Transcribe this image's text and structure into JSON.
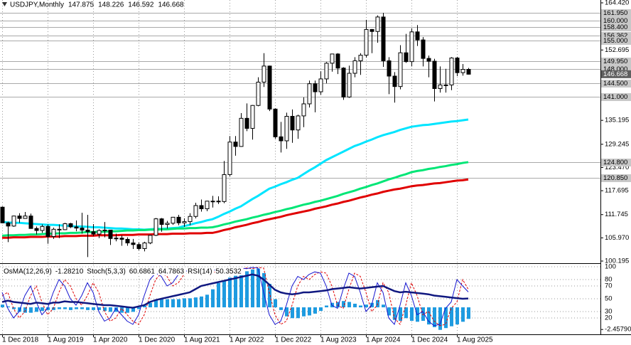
{
  "chart_data": [
    {
      "type": "candlestick",
      "symbol": "USDJPY,Monthly",
      "categories": [
        "1 Dec 2018",
        null,
        null,
        null,
        null,
        null,
        null,
        null,
        "1 Aug 2019",
        null,
        null,
        null,
        null,
        null,
        null,
        null,
        "1 Apr 2020",
        null,
        null,
        null,
        null,
        null,
        null,
        null,
        "1 Dec 2020",
        null,
        null,
        null,
        null,
        null,
        null,
        null,
        "1 Aug 2021",
        null,
        null,
        null,
        null,
        null,
        null,
        null,
        "1 Apr 2022",
        null,
        null,
        null,
        null,
        null,
        null,
        null,
        "1 Dec 2022",
        null,
        null,
        null,
        null,
        null,
        null,
        null,
        "1 Aug 2023",
        null,
        null,
        null,
        null,
        null,
        null,
        null,
        "1 Apr 2024",
        null,
        null,
        null,
        null,
        null,
        null,
        null,
        "1 Dec 2024",
        null,
        null,
        null,
        null,
        null,
        null,
        null,
        "1 Aug 2025",
        null,
        null
      ],
      "open": [
        113.6,
        109.7,
        108.9,
        111.4,
        110.8,
        111.4,
        108.3,
        107.8,
        108.8,
        106.3,
        108.1,
        108.0,
        109.5,
        108.7,
        108.4,
        107.9,
        107.5,
        106.9,
        107.8,
        107.9,
        105.8,
        105.9,
        105.6,
        104.7,
        104.3,
        103.3,
        104.7,
        106.6,
        110.7,
        109.3,
        109.6,
        111.1,
        109.7,
        110.0,
        111.3,
        114.0,
        113.2,
        115.1,
        115.1,
        115.0,
        121.7,
        129.8,
        128.7,
        135.7,
        133.2,
        138.9,
        144.7,
        148.7,
        138.0,
        131.1,
        130.1,
        136.2,
        132.8,
        136.3,
        139.3,
        144.3,
        142.3,
        145.5,
        149.4,
        151.7,
        148.2,
        141.0,
        146.9,
        150.0,
        151.4,
        157.8,
        157.3,
        160.9,
        150.0,
        146.2,
        143.6,
        152.0,
        149.8,
        157.2,
        155.2,
        150.6,
        149.9,
        143.1,
        144.0,
        144.0,
        150.7,
        147.05,
        147.875
      ],
      "high": [
        113.8,
        110.0,
        111.5,
        112.1,
        112.4,
        112.0,
        108.8,
        109.3,
        109.3,
        108.5,
        109.3,
        109.7,
        109.7,
        110.3,
        112.2,
        111.7,
        109.4,
        108.1,
        109.9,
        107.9,
        107.0,
        106.6,
        106.1,
        105.7,
        104.8,
        105.0,
        106.7,
        110.9,
        110.9,
        110.2,
        111.1,
        111.7,
        110.8,
        112.1,
        114.7,
        115.5,
        115.2,
        116.4,
        116.3,
        125.1,
        131.3,
        131.3,
        137.0,
        139.4,
        139.0,
        145.9,
        151.9,
        148.8,
        138.2,
        134.8,
        137.1,
        137.9,
        136.6,
        140.9,
        145.1,
        145.1,
        147.4,
        149.7,
        151.7,
        151.9,
        148.4,
        148.8,
        150.9,
        151.9,
        160.2,
        157.9,
        161.3,
        161.95,
        150.9,
        147.2,
        153.9,
        156.7,
        158.1,
        158.9,
        155.9,
        151.3,
        150.5,
        148.6,
        148.0,
        150.9,
        151.0,
        149.2,
        148.226
      ],
      "low": [
        109.6,
        104.9,
        108.7,
        109.7,
        110.8,
        108.3,
        106.8,
        107.2,
        104.5,
        105.7,
        105.9,
        107.9,
        108.4,
        107.6,
        107.0,
        101.2,
        106.4,
        105.9,
        106.1,
        104.2,
        105.1,
        104.0,
        104.0,
        103.2,
        102.9,
        102.6,
        104.4,
        106.4,
        107.5,
        108.3,
        109.2,
        109.1,
        108.7,
        109.1,
        110.8,
        112.5,
        112.6,
        113.5,
        114.4,
        114.6,
        121.3,
        126.4,
        128.6,
        132.5,
        130.4,
        138.7,
        143.5,
        137.5,
        130.6,
        127.2,
        128.1,
        129.6,
        130.6,
        133.5,
        138.4,
        137.2,
        141.5,
        144.4,
        147.3,
        146.7,
        140.3,
        140.8,
        145.9,
        146.5,
        150.8,
        151.9,
        154.5,
        148.5,
        141.7,
        139.6,
        142.9,
        149.5,
        148.6,
        153.7,
        148.6,
        145.9,
        139.9,
        142.1,
        142.1,
        142.7,
        146.2,
        146.3,
        146.592
      ],
      "close": [
        109.7,
        108.9,
        111.4,
        110.8,
        111.4,
        108.3,
        107.8,
        108.8,
        106.3,
        108.1,
        108.0,
        109.5,
        108.7,
        108.4,
        107.9,
        107.5,
        106.9,
        107.8,
        107.9,
        105.8,
        105.9,
        105.6,
        104.7,
        104.3,
        103.3,
        104.7,
        106.6,
        110.7,
        109.3,
        109.6,
        111.1,
        109.7,
        110.0,
        111.3,
        114.0,
        113.2,
        115.1,
        115.1,
        115.0,
        121.7,
        129.8,
        128.7,
        135.7,
        133.2,
        138.9,
        144.7,
        148.7,
        138.0,
        131.1,
        130.1,
        136.2,
        132.8,
        136.3,
        139.3,
        144.3,
        142.3,
        145.5,
        149.4,
        151.7,
        148.2,
        141.0,
        146.9,
        150.0,
        151.4,
        157.8,
        157.3,
        160.9,
        150.0,
        146.2,
        143.6,
        152.0,
        149.8,
        157.2,
        155.2,
        150.6,
        149.9,
        143.1,
        144.0,
        144.0,
        150.7,
        147.05,
        147.875,
        146.668
      ],
      "series": [
        {
          "color": "#00e5ff",
          "values": [
            109.9,
            109.8,
            109.7,
            109.7,
            109.6,
            109.5,
            109.4,
            109.3,
            109.2,
            109.2,
            109.1,
            109.0,
            108.9,
            108.8,
            108.8,
            108.7,
            108.6,
            108.6,
            108.5,
            108.4,
            108.3,
            108.3,
            108.2,
            108.1,
            108.1,
            108.0,
            108.1,
            108.2,
            108.2,
            108.3,
            108.4,
            108.5,
            108.9,
            109.2,
            109.6,
            109.9,
            110.3,
            110.6,
            111.2,
            111.9,
            112.5,
            113.2,
            113.8,
            114.7,
            115.6,
            116.4,
            117.3,
            118.2,
            118.7,
            119.3,
            119.8,
            120.4,
            120.9,
            121.8,
            122.7,
            123.5,
            124.4,
            125.3,
            126.0,
            126.7,
            127.4,
            128.1,
            128.8,
            129.3,
            129.9,
            130.4,
            131.0,
            131.5,
            131.9,
            132.3,
            132.8,
            133.2,
            133.6,
            133.8,
            134.0,
            134.1,
            134.3,
            134.5,
            134.7,
            134.9,
            135.0,
            135.2,
            135.4
          ]
        },
        {
          "color": "#00e676",
          "values": [
            106.5,
            106.6,
            106.6,
            106.7,
            106.7,
            106.8,
            106.8,
            106.9,
            107.0,
            107.0,
            107.1,
            107.1,
            107.2,
            107.2,
            107.3,
            107.4,
            107.4,
            107.5,
            107.5,
            107.6,
            107.6,
            107.7,
            107.8,
            107.8,
            107.9,
            107.9,
            108.0,
            108.0,
            108.1,
            108.1,
            108.2,
            108.3,
            108.3,
            108.4,
            108.4,
            108.5,
            108.5,
            108.6,
            108.9,
            109.3,
            109.6,
            110.0,
            110.3,
            110.6,
            111.0,
            111.3,
            111.7,
            112.0,
            112.4,
            112.7,
            113.1,
            113.4,
            113.8,
            114.2,
            114.5,
            114.9,
            115.2,
            115.6,
            116.0,
            116.4,
            116.9,
            117.3,
            117.7,
            118.2,
            118.6,
            119.1,
            119.5,
            120.0,
            120.5,
            120.9,
            121.4,
            121.8,
            122.3,
            122.6,
            122.8,
            123.1,
            123.3,
            123.6,
            123.8,
            124.1,
            124.3,
            124.6,
            124.8
          ]
        },
        {
          "color": "#e00000",
          "values": [
            106.0,
            106.0,
            106.1,
            106.1,
            106.1,
            106.2,
            106.2,
            106.2,
            106.3,
            106.3,
            106.3,
            106.4,
            106.4,
            106.4,
            106.5,
            106.5,
            106.5,
            106.6,
            106.6,
            106.6,
            106.6,
            106.7,
            106.7,
            106.7,
            106.8,
            106.8,
            106.8,
            106.9,
            106.9,
            106.9,
            107.0,
            107.0,
            107.0,
            107.1,
            107.1,
            107.1,
            107.2,
            107.2,
            107.5,
            107.9,
            108.2,
            108.6,
            108.9,
            109.2,
            109.6,
            109.9,
            110.3,
            110.6,
            110.9,
            111.2,
            111.6,
            111.9,
            112.2,
            112.5,
            112.8,
            113.2,
            113.5,
            113.8,
            114.2,
            114.5,
            114.9,
            115.2,
            115.6,
            116.0,
            116.3,
            116.7,
            117.0,
            117.4,
            117.7,
            118.0,
            118.2,
            118.5,
            118.8,
            119.0,
            119.1,
            119.3,
            119.5,
            119.6,
            119.8,
            120.0,
            120.2,
            120.3,
            120.5
          ]
        }
      ],
      "ylim": [
        100.195,
        164.42
      ],
      "yticks": [
        {
          "value": 164.42,
          "label": "164.420"
        },
        152.695,
        135.195,
        129.245,
        {
          "value": 123.47,
          "label": "123.470"
        },
        117.695,
        111.745,
        {
          "value": 105.97,
          "label": "105.970"
        },
        100.195
      ],
      "levels": [
        {
          "value": 161.95,
          "label": "161.950"
        },
        {
          "value": 160,
          "label": "160.000"
        },
        {
          "value": 158.4,
          "label": "158.400"
        },
        156.362,
        {
          "value": 155,
          "label": "155.000"
        },
        {
          "value": 149.95,
          "label": "149.950"
        },
        {
          "value": 148,
          "label": "148.000"
        },
        {
          "value": 144.5,
          "label": "144.500"
        },
        {
          "value": 141,
          "label": "141.000"
        },
        {
          "value": 124.8,
          "label": "124.800"
        },
        {
          "value": 120.85,
          "label": "120.850"
        }
      ],
      "level_color": "#a9a9a9",
      "grid": true
    },
    {
      "type": "oscillator",
      "osma": {
        "name": "OsMA(12,26,9)",
        "last_label": "-1.28210",
        "color": "#1e9be0",
        "axis": "y2",
        "values": [
          0.3,
          0.1,
          -0.2,
          -0.5,
          -0.6,
          -0.6,
          -0.5,
          -0.4,
          -0.3,
          -0.3,
          -0.2,
          -0.2,
          -0.3,
          -0.2,
          -0.2,
          -0.3,
          -0.3,
          -0.3,
          -0.4,
          -0.5,
          -0.5,
          -0.6,
          -0.6,
          -0.5,
          -0.2,
          0.2,
          0.5,
          0.8,
          0.9,
          0.9,
          0.9,
          0.9,
          1.0,
          1.0,
          1.1,
          1.2,
          1.4,
          2.0,
          2.7,
          3.0,
          3.3,
          3.5,
          3.8,
          4.0,
          4.2,
          4.3,
          3.8,
          2.6,
          0.9,
          -0.3,
          -1.0,
          -1.2,
          -1.2,
          -1.0,
          -0.9,
          -0.7,
          -0.4,
          0.2,
          0.5,
          0.6,
          0.7,
          0.6,
          0.4,
          0.2,
          0.3,
          0.5,
          0.8,
          0.3,
          -0.9,
          -1.4,
          -1.5,
          -1.2,
          -1.5,
          -1.6,
          -1.5,
          -1.9,
          -2.2,
          -2.5,
          -2.3,
          -2.1,
          -1.9,
          -1.6,
          -1.2821
        ]
      },
      "stoch": {
        "name": "Stoch(5,3,3)",
        "color": "#1515d0",
        "signal_color": "#e00000",
        "values": [
          60,
          35,
          20,
          30,
          55,
          70,
          45,
          25,
          35,
          60,
          80,
          70,
          50,
          40,
          55,
          75,
          60,
          30,
          15,
          20,
          35,
          25,
          15,
          10,
          25,
          55,
          80,
          90,
          85,
          70,
          75,
          88,
          92,
          95,
          93,
          88,
          90,
          94,
          96,
          97,
          95,
          96,
          98,
          97,
          99,
          98,
          60,
          25,
          10,
          15,
          40,
          70,
          85,
          80,
          88,
          92,
          90,
          70,
          40,
          35,
          65,
          90,
          85,
          60,
          30,
          40,
          75,
          60,
          20,
          10,
          40,
          75,
          55,
          25,
          30,
          15,
          8,
          10,
          35,
          45,
          80,
          70,
          60.6861
        ],
        "signal": [
          55,
          60,
          35,
          20,
          30,
          55,
          70,
          45,
          25,
          35,
          60,
          80,
          70,
          50,
          40,
          55,
          75,
          60,
          30,
          15,
          20,
          35,
          25,
          15,
          10,
          25,
          55,
          80,
          90,
          85,
          70,
          75,
          88,
          92,
          95,
          93,
          88,
          90,
          94,
          96,
          97,
          95,
          96,
          98,
          97,
          99,
          98,
          60,
          25,
          10,
          15,
          40,
          70,
          85,
          80,
          88,
          92,
          90,
          70,
          40,
          35,
          65,
          90,
          85,
          60,
          30,
          40,
          75,
          60,
          20,
          10,
          40,
          75,
          55,
          25,
          30,
          15,
          8,
          10,
          35,
          45,
          80,
          64.7863
        ]
      },
      "rsi": {
        "name": "RSI(14)",
        "color": "#101880",
        "values": [
          45,
          47,
          45,
          44,
          43,
          42,
          44,
          43,
          42,
          44,
          44,
          46,
          45,
          45,
          44,
          43,
          42,
          41,
          40,
          40,
          39,
          38,
          37,
          36,
          38,
          40,
          45,
          48,
          50,
          52,
          54,
          56,
          58,
          60,
          65,
          70,
          72,
          74,
          76,
          78,
          80,
          82,
          84,
          86,
          88,
          86,
          80,
          72,
          64,
          60,
          58,
          57,
          58,
          60,
          60,
          61,
          62,
          63,
          65,
          66,
          67,
          68,
          67,
          66,
          67,
          68,
          69,
          70,
          66,
          62,
          60,
          61,
          60,
          59,
          58,
          57,
          55,
          54,
          53,
          52,
          51,
          50,
          50.3532
        ]
      },
      "ylim": [
        0,
        100
      ],
      "yticks": [
        100,
        80,
        70,
        50,
        30,
        20
      ],
      "y2lim": [
        -2.6,
        4.5
      ],
      "y2ticks": [
        {
          "value": -2.4579,
          "label": "-2.45790"
        }
      ]
    }
  ]
}
